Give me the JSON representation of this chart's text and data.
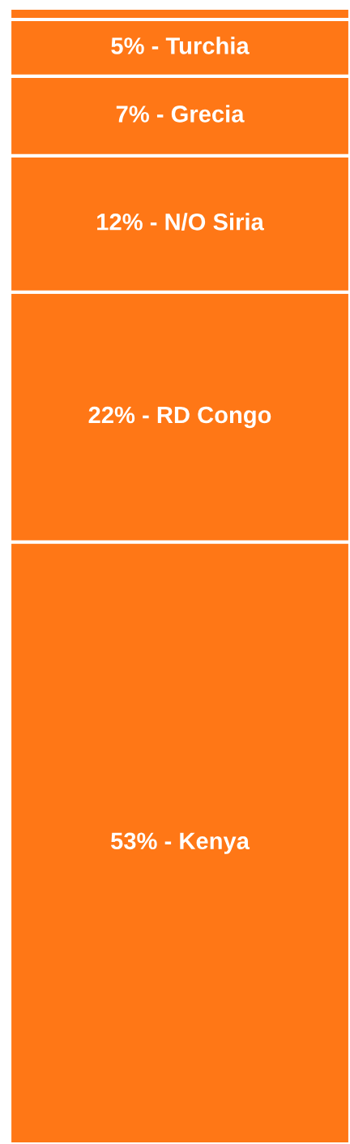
{
  "chart_data": {
    "type": "bar",
    "stacked": true,
    "categories": [
      null
    ],
    "series": [
      {
        "color": "#ff7716",
        "values": [
          53
        ],
        "value_labels": [
          "53% - Kenya"
        ]
      },
      {
        "color": "#ff7716",
        "values": [
          22
        ],
        "value_labels": [
          "22% - RD Congo"
        ]
      },
      {
        "color": "#ff7716",
        "values": [
          12
        ],
        "value_labels": [
          "12% - N/O Siria"
        ]
      },
      {
        "color": "#ff7716",
        "values": [
          7
        ],
        "value_labels": [
          "7% - Grecia"
        ]
      },
      {
        "color": "#ff7716",
        "values": [
          5
        ],
        "value_labels": [
          "5% - Turchia"
        ]
      },
      {
        "color": "#ff7716",
        "values": [
          1
        ],
        "value_labels": [
          null
        ]
      }
    ]
  }
}
